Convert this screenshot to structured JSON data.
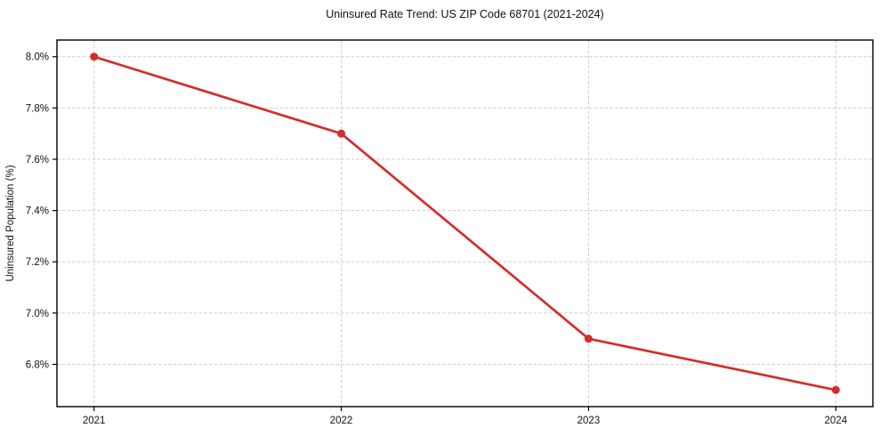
{
  "chart_data": {
    "type": "line",
    "title": "Uninsured Rate Trend: US ZIP Code 68701 (2021-2024)",
    "xlabel": "",
    "ylabel": "Uninsured Population (%)",
    "x": [
      2021,
      2022,
      2023,
      2024
    ],
    "x_tick_labels": [
      "2021",
      "2022",
      "2023",
      "2024"
    ],
    "y_ticks": [
      6.8,
      7.0,
      7.2,
      7.4,
      7.6,
      7.8,
      8.0
    ],
    "y_tick_labels": [
      "6.8%",
      "7.0%",
      "7.2%",
      "7.4%",
      "7.6%",
      "7.8%",
      "8.0%"
    ],
    "series": [
      {
        "name": "Uninsured Population (%)",
        "values": [
          8.0,
          7.7,
          6.9,
          6.7
        ],
        "color": "#d62b2b"
      }
    ],
    "xlim": [
      2020.85,
      2024.15
    ],
    "ylim": [
      6.635,
      8.065
    ],
    "grid": true,
    "legend": "none",
    "grid_color": "#cdcdcd",
    "axis_color": "#000000",
    "marker": "circle",
    "marker_radius": 4.5,
    "line_width": 2.7
  }
}
